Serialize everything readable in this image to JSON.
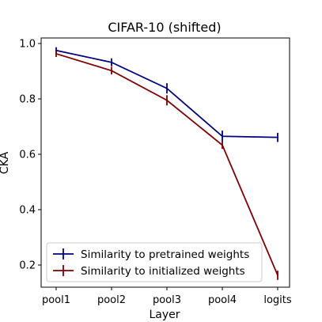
{
  "chart_data": {
    "type": "line",
    "title": "CIFAR-10 (shifted)",
    "xlabel": "Layer",
    "ylabel": "CKA",
    "categories": [
      "pool1",
      "pool2",
      "pool3",
      "pool4",
      "logits"
    ],
    "ylim": [
      0.12,
      1.02
    ],
    "yticks": [
      "0.2",
      "0.4",
      "0.6",
      "0.8",
      "1.0"
    ],
    "grid": false,
    "legend_position": "lower-left",
    "series": [
      {
        "name": "Similarity to pretrained weights",
        "values": [
          0.975,
          0.932,
          0.838,
          0.665,
          0.661
        ],
        "errors": [
          0.003,
          0.006,
          0.01,
          0.012,
          0.008
        ],
        "color": "#000080"
      },
      {
        "name": "Similarity to initialized weights",
        "values": [
          0.963,
          0.902,
          0.795,
          0.633,
          0.163
        ],
        "errors": [
          0.003,
          0.005,
          0.01,
          0.005,
          0.008
        ],
        "color": "#800000"
      }
    ]
  }
}
